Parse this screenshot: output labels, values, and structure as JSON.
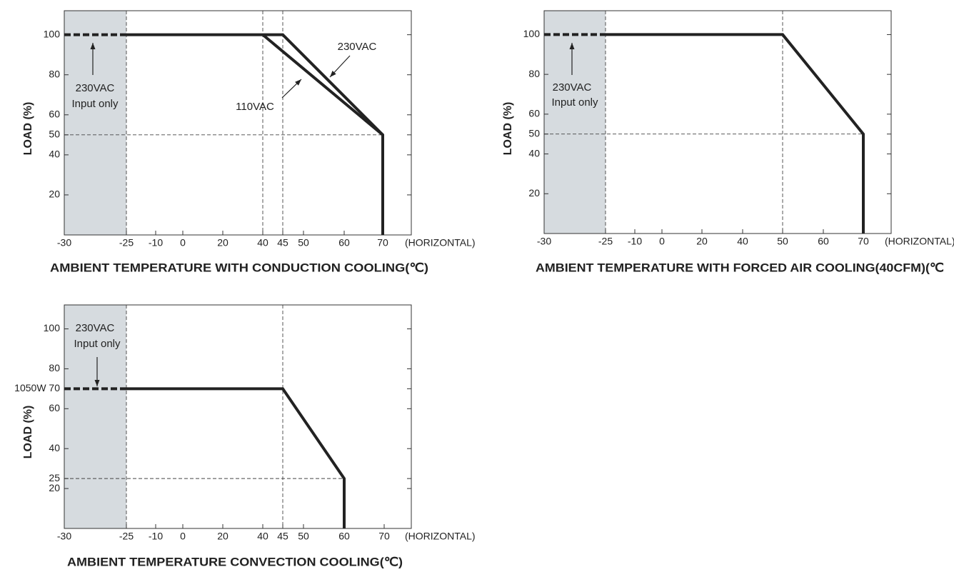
{
  "chart_data": [
    {
      "type": "line",
      "xlabel": "AMBIENT TEMPERATURE WITH  CONDUCTION COOLING(℃)",
      "ylabel": "LOAD (%)",
      "x_note": "(HORIZONTAL)",
      "xlim": [
        -30,
        77
      ],
      "xticks": [
        -30,
        -25,
        -10,
        0,
        20,
        40,
        45,
        50,
        60,
        70
      ],
      "ylim": [
        0,
        112
      ],
      "yticks": [
        20,
        40,
        50,
        60,
        80,
        100
      ],
      "ref_x": [
        -25,
        40,
        45
      ],
      "ref_y": [
        50
      ],
      "color": "#222222",
      "shade_color": "#d6dbdf",
      "series": [
        {
          "name": "230VAC",
          "x": [
            -25,
            45,
            70,
            70
          ],
          "values": [
            100,
            100,
            50,
            0
          ]
        },
        {
          "name": "110VAC",
          "x": [
            40,
            70
          ],
          "values": [
            100,
            50
          ]
        },
        {
          "label": [
            "230VAC",
            "Input only"
          ],
          "x": [
            -30,
            -25
          ],
          "values": [
            100,
            100
          ],
          "dashed": true
        }
      ]
    },
    {
      "type": "line",
      "xlabel": "AMBIENT TEMPERATURE WITH  FORCED AIR COOLING(40CFM)(℃",
      "ylabel": "LOAD (%)",
      "x_note": "(HORIZONTAL)",
      "xlim": [
        -30,
        77
      ],
      "xticks": [
        -30,
        -25,
        -10,
        0,
        20,
        40,
        50,
        60,
        70
      ],
      "ylim": [
        0,
        112
      ],
      "yticks": [
        20,
        40,
        50,
        60,
        80,
        100
      ],
      "ref_x": [
        -25,
        50
      ],
      "ref_y": [
        50
      ],
      "color": "#222222",
      "shade_color": "#d6dbdf",
      "series": [
        {
          "x": [
            -25,
            50,
            70,
            70
          ],
          "values": [
            100,
            100,
            50,
            0
          ]
        },
        {
          "label": [
            "230VAC",
            "Input only"
          ],
          "x": [
            -30,
            -25
          ],
          "values": [
            100,
            100
          ],
          "dashed": true
        }
      ]
    },
    {
      "type": "line",
      "xlabel": "AMBIENT TEMPERATURE CONVECTION COOLING(℃)",
      "ylabel": "LOAD (%)",
      "x_note": "(HORIZONTAL)",
      "xlim": [
        -30,
        77
      ],
      "xticks": [
        -30,
        -25,
        -10,
        0,
        20,
        40,
        45,
        50,
        60,
        70
      ],
      "ylim": [
        0,
        112
      ],
      "yticks": [
        20,
        {
          "value": 25,
          "label": "25"
        },
        40,
        60,
        {
          "value": 70,
          "label": "1050W 70"
        },
        80,
        100
      ],
      "ref_x": [
        -25,
        45
      ],
      "ref_y": [
        25
      ],
      "color": "#222222",
      "shade_color": "#d6dbdf",
      "series": [
        {
          "x": [
            -25,
            45,
            60,
            60
          ],
          "values": [
            70,
            70,
            25,
            0
          ]
        },
        {
          "label": [
            "230VAC",
            "Input only"
          ],
          "x": [
            -30,
            -25
          ],
          "values": [
            70,
            70
          ],
          "dashed": true
        }
      ]
    }
  ]
}
